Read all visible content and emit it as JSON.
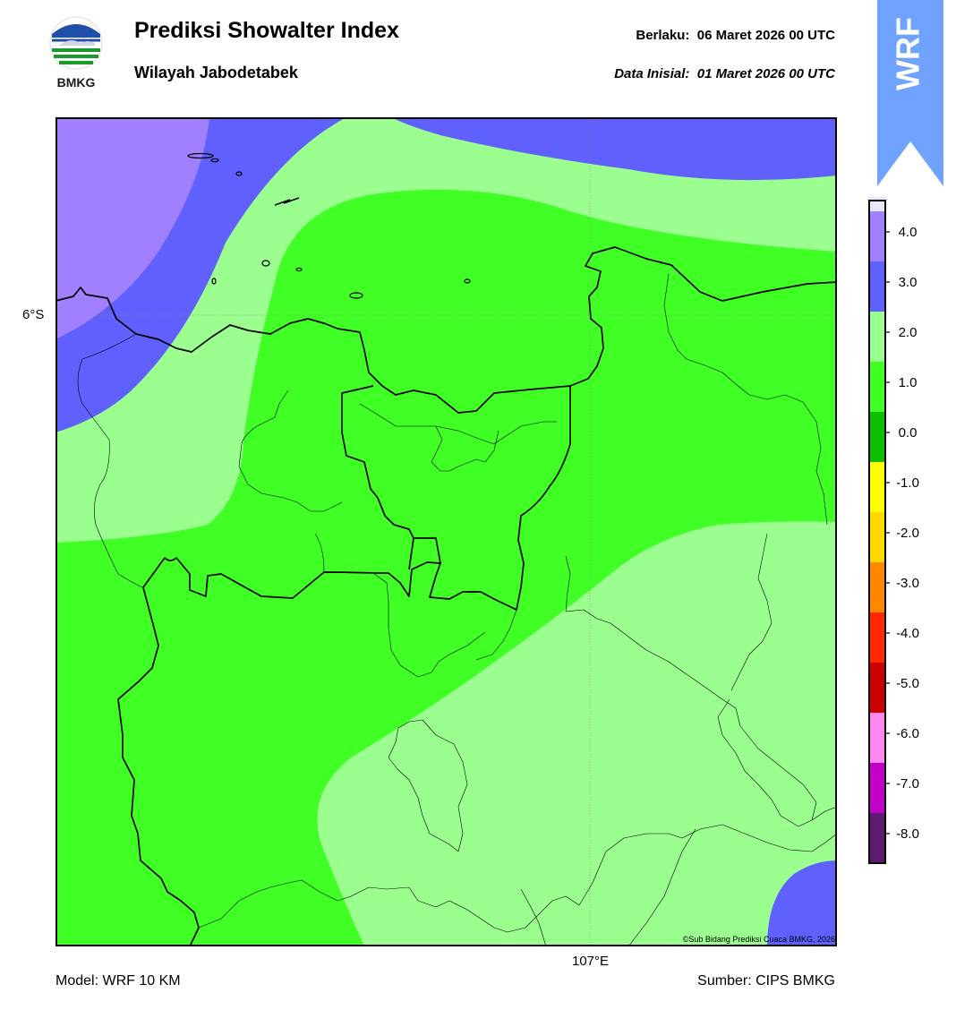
{
  "header": {
    "title": "Prediksi Showalter Index",
    "subtitle": "Wilayah Jabodetabek",
    "valid_label": "Berlaku:",
    "valid_value": "06 Maret 2026 00 UTC",
    "init_label": "Data Inisial:",
    "init_value": "01 Maret 2026 00 UTC"
  },
  "logo": {
    "text": "BMKG",
    "icon": "bmkg-logo-icon"
  },
  "badge": {
    "text": "WRF",
    "color": "#6fa3ff",
    "icon": "up-arrow-badge-icon"
  },
  "axes": {
    "lat_label": "6°S",
    "lon_label": "107°E"
  },
  "footer": {
    "model": "Model: WRF 10 KM",
    "source": "Sumber: CIPS BMKG"
  },
  "map": {
    "copyright": "©Sub Bidang Prediksi Cuaca BMKG, 2026",
    "colors": {
      "light_purple": "#a080ff",
      "blue": "#6060ff",
      "light_green": "#9aff8f",
      "green": "#40ff25",
      "coast": "#000000"
    }
  },
  "colorbar": {
    "labels": [
      "4.0",
      "3.0",
      "2.0",
      "1.0",
      "0.0",
      "-1.0",
      "-2.0",
      "-3.0",
      "-4.0",
      "-5.0",
      "-6.0",
      "-7.0",
      "-8.0"
    ],
    "colors": [
      "#5c1a70",
      "#c000c8",
      "#ff88ee",
      "#c80000",
      "#ff2800",
      "#ff8800",
      "#ffd800",
      "#ffff00",
      "#0ec000",
      "#40ff25",
      "#9aff8f",
      "#6060ff",
      "#a080ff",
      "#e8e8ff"
    ]
  }
}
